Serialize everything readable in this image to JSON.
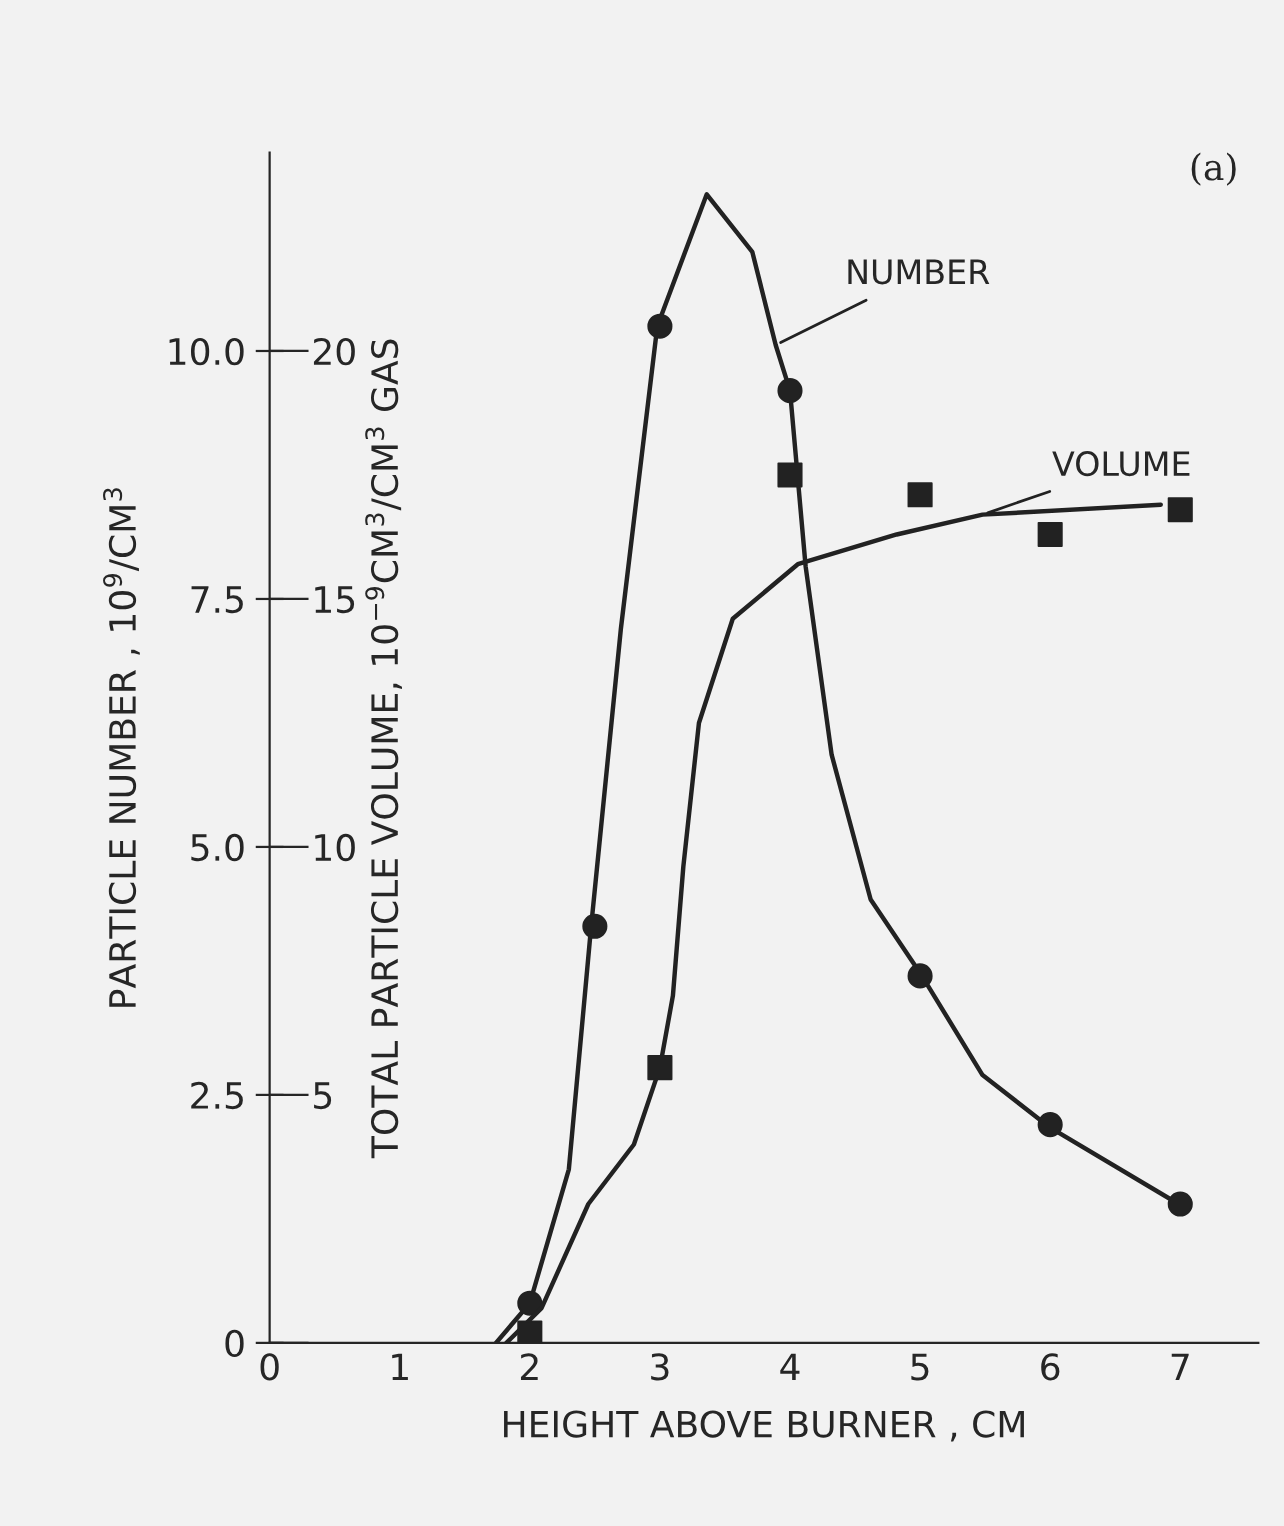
{
  "chart_data": {
    "type": "scatter",
    "xlabel": "HEIGHT ABOVE BURNER , CM",
    "ylabel": "PARTICLE NUMBER , 10$^{9}$/CM$^{3}$",
    "y2label": "TOTAL PARTICLE VOLUME, 10$^{−9}$CM$^{3}$/CM$^{3}$ GAS",
    "xlim": [
      0,
      7.6
    ],
    "ylim": [
      0,
      12
    ],
    "y2lim": [
      0,
      24
    ],
    "xticks": [
      0,
      1,
      2,
      3,
      4,
      5,
      6,
      7
    ],
    "yticks": [
      0,
      2.5,
      {
        "value": 5,
        "label": "5.0"
      },
      7.5,
      {
        "value": 10,
        "label": "10.0"
      }
    ],
    "y2ticks": [
      {
        "value": 0,
        "label": null
      },
      5,
      10,
      15,
      20
    ],
    "grid": false,
    "legend": false,
    "series": [
      {
        "type": "line",
        "color": "#222222",
        "marker": "none",
        "line_style": "solid",
        "x": [
          1.74,
          2.0,
          2.3,
          2.47,
          2.7,
          2.98,
          3.36,
          3.71,
          3.89,
          4.0,
          4.12,
          4.32,
          4.62,
          5.0,
          5.48,
          6.0,
          7.0
        ],
        "values": [
          0,
          0.4,
          1.75,
          4.18,
          7.2,
          10.25,
          11.58,
          11.0,
          10.06,
          9.6,
          7.83,
          5.93,
          4.47,
          3.73,
          2.7,
          2.17,
          1.39
        ]
      },
      {
        "color": "#222222",
        "marker": "circle",
        "x": [
          2,
          2.5,
          3,
          4,
          5,
          6,
          7
        ],
        "values": [
          0.4,
          4.2,
          10.25,
          9.6,
          3.7,
          2.2,
          1.4
        ]
      },
      {
        "type": "line",
        "axis": "y2",
        "color": "#222222",
        "marker": "none",
        "line_style": "solid",
        "x": [
          1.82,
          2.09,
          2.45,
          2.8,
          3.0,
          3.1,
          3.18,
          3.3,
          3.56,
          4.06,
          4.82,
          5.48,
          6.85
        ],
        "values": [
          0,
          0.7,
          2.8,
          4.0,
          5.55,
          7.0,
          9.6,
          12.5,
          14.6,
          15.7,
          16.3,
          16.7,
          16.9
        ]
      },
      {
        "axis": "y2",
        "color": "#222222",
        "marker": "square",
        "x": [
          2,
          3,
          4,
          5,
          6,
          7
        ],
        "values": [
          0.2,
          5.55,
          17.5,
          17.1,
          16.3,
          16.8
        ]
      }
    ],
    "annotations": [
      "(a)",
      {
        "text": "NUMBER",
        "x": 3.89,
        "y": 10.06
      },
      {
        "text": "VOLUME",
        "x": 5.48,
        "y": 8.35
      }
    ]
  }
}
